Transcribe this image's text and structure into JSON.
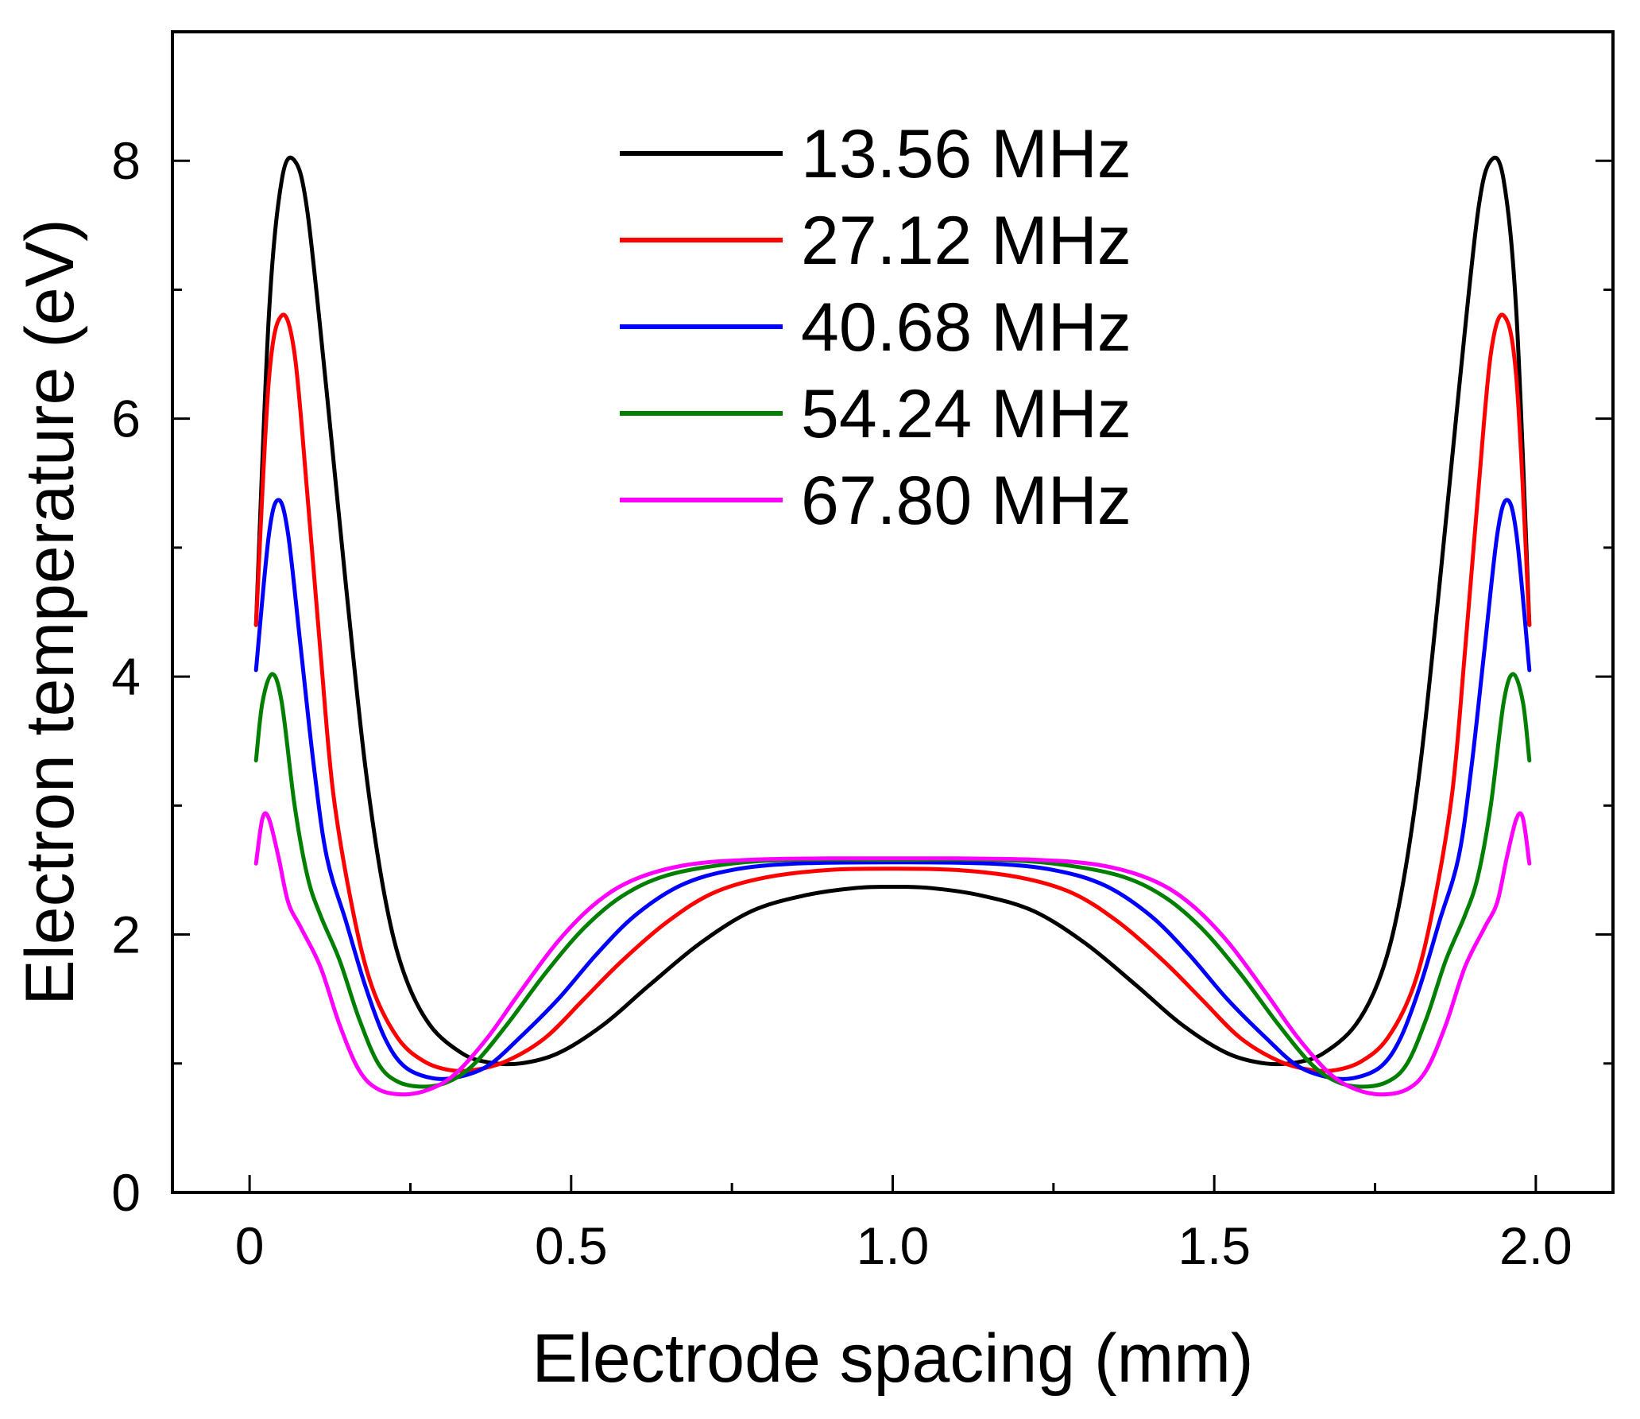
{
  "chart_data": {
    "type": "line",
    "title": "",
    "xlabel": "Electrode spacing (mm)",
    "ylabel": "Electron temperature (eV)",
    "xlim": [
      -0.12,
      2.12
    ],
    "ylim": [
      0,
      9
    ],
    "x_ticks": [
      {
        "value": 0,
        "label": "0"
      },
      {
        "value": 0.5,
        "label": "0.5"
      },
      {
        "value": 1.0,
        "label": "1.0"
      },
      {
        "value": 1.5,
        "label": "1.5"
      },
      {
        "value": 2.0,
        "label": "2.0"
      }
    ],
    "y_ticks": [
      {
        "value": 0,
        "label": "0"
      },
      {
        "value": 2,
        "label": "2"
      },
      {
        "value": 4,
        "label": "4"
      },
      {
        "value": 6,
        "label": "6"
      },
      {
        "value": 8,
        "label": "8"
      }
    ],
    "legend_position": "top-center",
    "grid": false,
    "series": [
      {
        "name": "13.56 MHz",
        "color": "#000000",
        "points": [
          [
            0.01,
            4.4
          ],
          [
            0.03,
            6.8
          ],
          [
            0.05,
            7.85
          ],
          [
            0.07,
            8.0
          ],
          [
            0.09,
            7.6
          ],
          [
            0.12,
            6.2
          ],
          [
            0.15,
            4.7
          ],
          [
            0.18,
            3.3
          ],
          [
            0.21,
            2.3
          ],
          [
            0.24,
            1.7
          ],
          [
            0.28,
            1.3
          ],
          [
            0.33,
            1.08
          ],
          [
            0.37,
            1.01
          ],
          [
            0.42,
            1.0
          ],
          [
            0.48,
            1.08
          ],
          [
            0.55,
            1.3
          ],
          [
            0.62,
            1.6
          ],
          [
            0.7,
            1.93
          ],
          [
            0.78,
            2.18
          ],
          [
            0.86,
            2.3
          ],
          [
            0.94,
            2.36
          ],
          [
            1.0,
            2.37
          ],
          [
            1.06,
            2.36
          ],
          [
            1.14,
            2.3
          ],
          [
            1.22,
            2.18
          ],
          [
            1.3,
            1.93
          ],
          [
            1.38,
            1.6
          ],
          [
            1.45,
            1.3
          ],
          [
            1.52,
            1.08
          ],
          [
            1.58,
            1.0
          ],
          [
            1.63,
            1.01
          ],
          [
            1.67,
            1.08
          ],
          [
            1.72,
            1.3
          ],
          [
            1.76,
            1.7
          ],
          [
            1.79,
            2.3
          ],
          [
            1.82,
            3.3
          ],
          [
            1.85,
            4.7
          ],
          [
            1.88,
            6.2
          ],
          [
            1.91,
            7.6
          ],
          [
            1.93,
            8.0
          ],
          [
            1.95,
            7.85
          ],
          [
            1.97,
            6.8
          ],
          [
            1.99,
            4.4
          ]
        ]
      },
      {
        "name": "27.12 MHz",
        "color": "#ff0000",
        "points": [
          [
            0.01,
            4.4
          ],
          [
            0.03,
            6.3
          ],
          [
            0.05,
            6.8
          ],
          [
            0.07,
            6.5
          ],
          [
            0.09,
            5.4
          ],
          [
            0.11,
            4.2
          ],
          [
            0.13,
            3.1
          ],
          [
            0.16,
            2.2
          ],
          [
            0.19,
            1.6
          ],
          [
            0.23,
            1.2
          ],
          [
            0.27,
            1.02
          ],
          [
            0.31,
            0.95
          ],
          [
            0.35,
            0.95
          ],
          [
            0.4,
            1.02
          ],
          [
            0.46,
            1.2
          ],
          [
            0.52,
            1.5
          ],
          [
            0.58,
            1.8
          ],
          [
            0.65,
            2.1
          ],
          [
            0.72,
            2.32
          ],
          [
            0.8,
            2.44
          ],
          [
            0.9,
            2.5
          ],
          [
            1.0,
            2.51
          ],
          [
            1.1,
            2.5
          ],
          [
            1.2,
            2.44
          ],
          [
            1.28,
            2.32
          ],
          [
            1.35,
            2.1
          ],
          [
            1.42,
            1.8
          ],
          [
            1.48,
            1.5
          ],
          [
            1.54,
            1.2
          ],
          [
            1.6,
            1.02
          ],
          [
            1.65,
            0.95
          ],
          [
            1.69,
            0.95
          ],
          [
            1.73,
            1.02
          ],
          [
            1.77,
            1.2
          ],
          [
            1.81,
            1.6
          ],
          [
            1.84,
            2.2
          ],
          [
            1.87,
            3.1
          ],
          [
            1.89,
            4.2
          ],
          [
            1.91,
            5.4
          ],
          [
            1.93,
            6.5
          ],
          [
            1.95,
            6.8
          ],
          [
            1.97,
            6.3
          ],
          [
            1.99,
            4.4
          ]
        ]
      },
      {
        "name": "40.68 MHz",
        "color": "#0000ff",
        "points": [
          [
            0.01,
            4.05
          ],
          [
            0.03,
            5.1
          ],
          [
            0.045,
            5.37
          ],
          [
            0.06,
            5.1
          ],
          [
            0.08,
            4.2
          ],
          [
            0.1,
            3.3
          ],
          [
            0.12,
            2.6
          ],
          [
            0.15,
            2.1
          ],
          [
            0.18,
            1.6
          ],
          [
            0.21,
            1.2
          ],
          [
            0.24,
            0.98
          ],
          [
            0.28,
            0.89
          ],
          [
            0.32,
            0.89
          ],
          [
            0.37,
            0.98
          ],
          [
            0.42,
            1.2
          ],
          [
            0.48,
            1.5
          ],
          [
            0.54,
            1.85
          ],
          [
            0.6,
            2.15
          ],
          [
            0.67,
            2.38
          ],
          [
            0.75,
            2.5
          ],
          [
            0.85,
            2.55
          ],
          [
            1.0,
            2.56
          ],
          [
            1.15,
            2.55
          ],
          [
            1.25,
            2.5
          ],
          [
            1.33,
            2.38
          ],
          [
            1.4,
            2.15
          ],
          [
            1.46,
            1.85
          ],
          [
            1.52,
            1.5
          ],
          [
            1.58,
            1.2
          ],
          [
            1.63,
            0.98
          ],
          [
            1.68,
            0.89
          ],
          [
            1.72,
            0.89
          ],
          [
            1.76,
            0.98
          ],
          [
            1.79,
            1.2
          ],
          [
            1.82,
            1.6
          ],
          [
            1.85,
            2.1
          ],
          [
            1.88,
            2.6
          ],
          [
            1.9,
            3.3
          ],
          [
            1.92,
            4.2
          ],
          [
            1.94,
            5.1
          ],
          [
            1.955,
            5.37
          ],
          [
            1.97,
            5.1
          ],
          [
            1.99,
            4.05
          ]
        ]
      },
      {
        "name": "54.24 MHz",
        "color": "#007f00",
        "points": [
          [
            0.01,
            3.35
          ],
          [
            0.02,
            3.8
          ],
          [
            0.035,
            4.02
          ],
          [
            0.05,
            3.8
          ],
          [
            0.07,
            3.0
          ],
          [
            0.09,
            2.45
          ],
          [
            0.11,
            2.15
          ],
          [
            0.14,
            1.8
          ],
          [
            0.17,
            1.35
          ],
          [
            0.2,
            1.0
          ],
          [
            0.23,
            0.86
          ],
          [
            0.27,
            0.82
          ],
          [
            0.31,
            0.86
          ],
          [
            0.35,
            1.0
          ],
          [
            0.4,
            1.3
          ],
          [
            0.46,
            1.7
          ],
          [
            0.52,
            2.05
          ],
          [
            0.58,
            2.3
          ],
          [
            0.65,
            2.46
          ],
          [
            0.75,
            2.55
          ],
          [
            0.85,
            2.58
          ],
          [
            1.0,
            2.58
          ],
          [
            1.15,
            2.58
          ],
          [
            1.25,
            2.55
          ],
          [
            1.35,
            2.46
          ],
          [
            1.42,
            2.3
          ],
          [
            1.48,
            2.05
          ],
          [
            1.54,
            1.7
          ],
          [
            1.6,
            1.3
          ],
          [
            1.65,
            1.0
          ],
          [
            1.69,
            0.86
          ],
          [
            1.73,
            0.82
          ],
          [
            1.77,
            0.86
          ],
          [
            1.8,
            1.0
          ],
          [
            1.83,
            1.35
          ],
          [
            1.86,
            1.8
          ],
          [
            1.89,
            2.15
          ],
          [
            1.91,
            2.45
          ],
          [
            1.93,
            3.0
          ],
          [
            1.95,
            3.8
          ],
          [
            1.965,
            4.02
          ],
          [
            1.98,
            3.8
          ],
          [
            1.99,
            3.35
          ]
        ]
      },
      {
        "name": "67.80 MHz",
        "color": "#ff00ff",
        "points": [
          [
            0.01,
            2.55
          ],
          [
            0.02,
            2.9
          ],
          [
            0.03,
            2.9
          ],
          [
            0.045,
            2.6
          ],
          [
            0.06,
            2.25
          ],
          [
            0.08,
            2.05
          ],
          [
            0.11,
            1.75
          ],
          [
            0.14,
            1.3
          ],
          [
            0.17,
            0.95
          ],
          [
            0.2,
            0.8
          ],
          [
            0.24,
            0.76
          ],
          [
            0.28,
            0.8
          ],
          [
            0.32,
            0.92
          ],
          [
            0.37,
            1.2
          ],
          [
            0.42,
            1.55
          ],
          [
            0.48,
            1.95
          ],
          [
            0.54,
            2.25
          ],
          [
            0.6,
            2.43
          ],
          [
            0.68,
            2.54
          ],
          [
            0.78,
            2.58
          ],
          [
            0.9,
            2.59
          ],
          [
            1.0,
            2.59
          ],
          [
            1.1,
            2.59
          ],
          [
            1.22,
            2.58
          ],
          [
            1.32,
            2.54
          ],
          [
            1.4,
            2.43
          ],
          [
            1.46,
            2.25
          ],
          [
            1.52,
            1.95
          ],
          [
            1.58,
            1.55
          ],
          [
            1.63,
            1.2
          ],
          [
            1.68,
            0.92
          ],
          [
            1.72,
            0.8
          ],
          [
            1.76,
            0.76
          ],
          [
            1.8,
            0.8
          ],
          [
            1.83,
            0.95
          ],
          [
            1.86,
            1.3
          ],
          [
            1.89,
            1.75
          ],
          [
            1.92,
            2.05
          ],
          [
            1.94,
            2.25
          ],
          [
            1.955,
            2.6
          ],
          [
            1.97,
            2.9
          ],
          [
            1.98,
            2.9
          ],
          [
            1.99,
            2.55
          ]
        ]
      }
    ]
  }
}
